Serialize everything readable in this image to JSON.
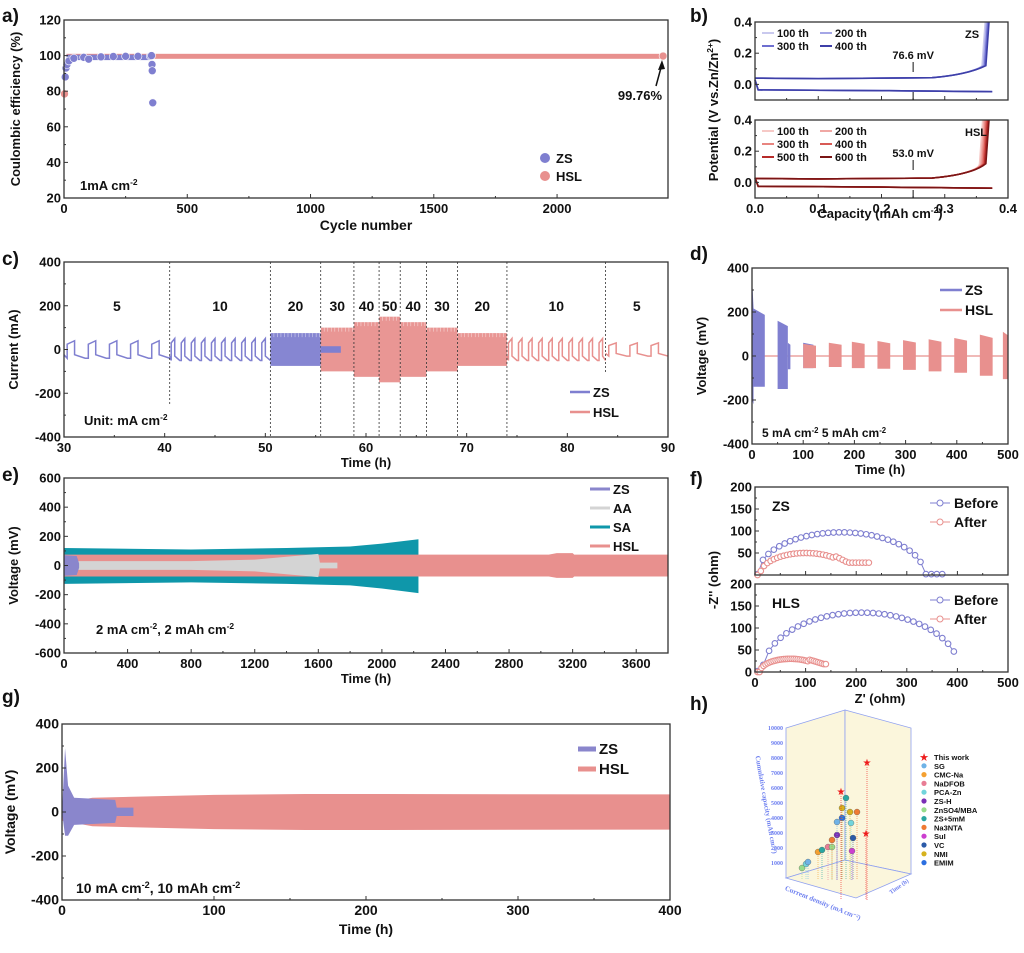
{
  "chart_data": [
    {
      "id": "a",
      "panel_label": "a)",
      "type": "scatter",
      "xlabel": "Cycle number",
      "ylabel": "Coulombic efficiency (%)",
      "xlim": [
        0,
        2450
      ],
      "ylim": [
        20,
        120
      ],
      "xticks": [
        0,
        500,
        1000,
        1500,
        2000
      ],
      "yticks": [
        20,
        40,
        60,
        80,
        100,
        120
      ],
      "annotation": "1mA cm⁻²",
      "callout": "99.76%",
      "legend": "bottom-right",
      "series": [
        {
          "name": "ZS",
          "color": "#7f7fd0",
          "points": [
            [
              5,
              88
            ],
            [
              8,
              93
            ],
            [
              12,
              95
            ],
            [
              20,
              97
            ],
            [
              40,
              98.5
            ],
            [
              80,
              99
            ],
            [
              100,
              98
            ],
            [
              150,
              99.3
            ],
            [
              200,
              99.5
            ],
            [
              250,
              99.6
            ],
            [
              300,
              99.6
            ],
            [
              350,
              99.7
            ],
            [
              355,
              100
            ],
            [
              357,
              95
            ],
            [
              358,
              91.5
            ],
            [
              360,
              73.5
            ]
          ],
          "band_x": [
            10,
            350
          ],
          "band_y": [
            97.5,
            100.5
          ]
        },
        {
          "name": "HSL",
          "color": "#e8908e",
          "points": [
            [
              2,
              78.5
            ],
            [
              2430,
              99.76
            ]
          ],
          "band_x": [
            10,
            2440
          ],
          "band_y": [
            98.2,
            101
          ]
        }
      ]
    },
    {
      "id": "b",
      "panel_label": "b)",
      "type": "line",
      "xlabel": "Capacity (mAh cm⁻²)",
      "ylabel": "Potential (V vs.Zn/Zn²⁺)",
      "xlim": [
        0,
        0.4
      ],
      "xticks": [
        0.0,
        0.1,
        0.2,
        0.3,
        0.4
      ],
      "subplots": [
        {
          "name": "ZS",
          "ylim": [
            -0.1,
            0.4
          ],
          "yticks": [
            0.0,
            0.2,
            0.4
          ],
          "overpotential": "76.6 mV",
          "legend": [
            "100 th",
            "200 th",
            "300 th",
            "400 th"
          ],
          "colors": [
            "#c9c9ee",
            "#a4a6e6",
            "#6e6fd0",
            "#3d3fa8"
          ]
        },
        {
          "name": "HSL",
          "ylim": [
            -0.1,
            0.4
          ],
          "yticks": [
            0.0,
            0.2,
            0.4
          ],
          "overpotential": "53.0 mV",
          "legend": [
            "100 th",
            "200 th",
            "300 th",
            "400 th",
            "500 th",
            "600 th"
          ],
          "colors": [
            "#f6c9c6",
            "#f0a8a4",
            "#e88580",
            "#d85a55",
            "#b72b2a",
            "#7a1515"
          ]
        }
      ]
    },
    {
      "id": "c",
      "panel_label": "c)",
      "type": "line",
      "xlabel": "Time (h)",
      "ylabel": "Current (mA)",
      "xlim": [
        30,
        90
      ],
      "ylim": [
        -400,
        400
      ],
      "xticks": [
        30,
        40,
        50,
        60,
        70,
        80,
        90
      ],
      "yticks": [
        -400,
        -200,
        0,
        200,
        400
      ],
      "annotation": "Unit: mA cm⁻²",
      "legend": "bottom-right",
      "segments": [
        {
          "label": "5",
          "from": 30,
          "to": 40.5,
          "amp": 40
        },
        {
          "label": "10",
          "from": 40.5,
          "to": 50.5,
          "amp": 50
        },
        {
          "label": "20",
          "from": 50.5,
          "to": 55.5,
          "amp": 75
        },
        {
          "label": "30",
          "from": 55.5,
          "to": 58.8,
          "amp": 100
        },
        {
          "label": "40",
          "from": 58.8,
          "to": 61.3,
          "amp": 125
        },
        {
          "label": "50",
          "from": 61.3,
          "to": 63.4,
          "amp": 150
        },
        {
          "label": "40",
          "from": 63.4,
          "to": 66.0,
          "amp": 125
        },
        {
          "label": "30",
          "from": 66.0,
          "to": 69.1,
          "amp": 100
        },
        {
          "label": "20",
          "from": 69.1,
          "to": 74.0,
          "amp": 75
        },
        {
          "label": "10",
          "from": 74.0,
          "to": 83.8,
          "amp": 50
        },
        {
          "label": "5",
          "from": 83.8,
          "to": 90,
          "amp": 30
        }
      ],
      "series": [
        {
          "name": "ZS",
          "color": "#7f7fd0",
          "end_time": 57.5
        },
        {
          "name": "HSL",
          "color": "#e8908e",
          "end_time": 90
        }
      ]
    },
    {
      "id": "d",
      "panel_label": "d)",
      "type": "area",
      "xlabel": "Time (h)",
      "ylabel": "Voltage (mV)",
      "xlim": [
        0,
        500
      ],
      "ylim": [
        -400,
        400
      ],
      "xticks": [
        0,
        100,
        200,
        300,
        400,
        500
      ],
      "yticks": [
        -400,
        -200,
        0,
        200,
        400
      ],
      "annotation": "5 mA cm⁻² 5 mAh cm⁻²",
      "legend": "top-right",
      "series": [
        {
          "name": "ZS",
          "color": "#7f7fd0",
          "blocks": [
            [
              0,
              25,
              220,
              140
            ],
            [
              50,
              70,
              160,
              150
            ],
            [
              70,
              75,
              60,
              60
            ],
            [
              100,
              120,
              60,
              55
            ]
          ]
        },
        {
          "name": "HSL",
          "color": "#e8908e",
          "blocks": [
            [
              100,
              125,
              55,
              55
            ],
            [
              150,
              175,
              60,
              50
            ],
            [
              195,
              220,
              65,
              55
            ],
            [
              245,
              270,
              68,
              58
            ],
            [
              295,
              320,
              72,
              63
            ],
            [
              345,
              370,
              76,
              70
            ],
            [
              395,
              420,
              82,
              76
            ],
            [
              445,
              470,
              97,
              90
            ],
            [
              490,
              500,
              110,
              105
            ]
          ]
        }
      ]
    },
    {
      "id": "e",
      "panel_label": "e)",
      "type": "area",
      "xlabel": "Time (h)",
      "ylabel": "Voltage (mV)",
      "xlim": [
        0,
        3800
      ],
      "ylim": [
        -600,
        600
      ],
      "xticks": [
        0,
        400,
        800,
        1200,
        1600,
        2000,
        2400,
        2800,
        3200,
        3600
      ],
      "yticks": [
        -600,
        -400,
        -200,
        0,
        200,
        400,
        600
      ],
      "annotation": "2 mA cm⁻², 2 mAh cm⁻²",
      "legend": "top-right",
      "series": [
        {
          "name": "ZS",
          "color": "#8a86cc",
          "envelope": [
            [
              0,
              70
            ],
            [
              80,
              65
            ],
            [
              95,
              15
            ]
          ]
        },
        {
          "name": "AA",
          "color": "#d4d4d4",
          "envelope": [
            [
              0,
              30
            ],
            [
              800,
              30
            ],
            [
              1200,
              40
            ],
            [
              1600,
              80
            ],
            [
              1610,
              20
            ],
            [
              1720,
              20
            ]
          ]
        },
        {
          "name": "SA",
          "color": "#0f97aa",
          "envelope": [
            [
              0,
              120
            ],
            [
              800,
              110
            ],
            [
              1400,
              120
            ],
            [
              1800,
              130
            ],
            [
              2000,
              150
            ],
            [
              2230,
              180
            ]
          ]
        },
        {
          "name": "HSL",
          "color": "#e8908e",
          "envelope": [
            [
              0,
              75
            ],
            [
              3050,
              75
            ],
            [
              3100,
              85
            ],
            [
              3200,
              85
            ],
            [
              3210,
              75
            ],
            [
              3800,
              75
            ]
          ]
        }
      ]
    },
    {
      "id": "f",
      "panel_label": "f)",
      "type": "scatter",
      "xlabel": "Z' (ohm)",
      "ylabel": "-Z'' (ohm)",
      "xlim": [
        0,
        500
      ],
      "xticks": [
        0,
        100,
        200,
        300,
        400,
        500
      ],
      "subplots": [
        {
          "name": "ZS",
          "ylim": [
            0,
            200
          ],
          "yticks": [
            50,
            100,
            150,
            200
          ],
          "series": [
            {
              "name": "Before",
              "color": "#7f7fd0",
              "center": 170,
              "radius": 165,
              "peak": 97,
              "end_x": 370
            },
            {
              "name": "After",
              "color": "#e8908e",
              "center": 100,
              "radius": 90,
              "peak": 50,
              "end_x": 225,
              "tail": 28
            }
          ]
        },
        {
          "name": "HLS",
          "ylim": [
            0,
            200
          ],
          "yticks": [
            0,
            50,
            100,
            150,
            200
          ],
          "series": [
            {
              "name": "Before",
              "color": "#7f7fd0",
              "center": 210,
              "radius": 195,
              "peak": 135,
              "end_x": 393
            },
            {
              "name": "After",
              "color": "#e8908e",
              "center": 70,
              "radius": 60,
              "peak": 30,
              "end_x": 140,
              "tail": 18
            }
          ]
        }
      ]
    },
    {
      "id": "g",
      "panel_label": "g)",
      "type": "area",
      "xlabel": "Time (h)",
      "ylabel": "Voltage (mV)",
      "xlim": [
        0,
        400
      ],
      "ylim": [
        -400,
        400
      ],
      "xticks": [
        0,
        100,
        200,
        300,
        400
      ],
      "yticks": [
        -400,
        -200,
        0,
        200,
        400
      ],
      "annotation": "10 mA cm⁻², 10 mAh cm⁻²",
      "legend": "top-right",
      "series": [
        {
          "name": "ZS",
          "color": "#8a86cc",
          "envelope": [
            [
              0,
              0
            ],
            [
              2,
              290
            ],
            [
              4,
              120
            ],
            [
              8,
              65
            ],
            [
              35,
              55
            ],
            [
              36,
              20
            ],
            [
              47,
              20
            ]
          ]
        },
        {
          "name": "HSL",
          "color": "#e8908e",
          "envelope": [
            [
              0,
              40
            ],
            [
              20,
              65
            ],
            [
              100,
              78
            ],
            [
              160,
              82
            ],
            [
              400,
              80
            ]
          ]
        }
      ]
    },
    {
      "id": "h",
      "panel_label": "h)",
      "type": "scatter",
      "title": "",
      "xlabel": "Current density (mA cm⁻²)",
      "ylabel": "Cumulative capacity (mAh cm⁻²)",
      "zlabel": "Time (h)",
      "ylim": [
        0,
        10000
      ],
      "yticks": [
        1000,
        2000,
        3000,
        4000,
        5000,
        6000,
        7000,
        8000,
        9000,
        10000
      ],
      "xticks": [
        0,
        5,
        10,
        15,
        20
      ],
      "zticks": [
        0,
        500,
        1000,
        1500,
        2000
      ],
      "legend": "right",
      "legend_items": [
        {
          "name": "This work",
          "color": "#ee1c1c",
          "marker": "star"
        },
        {
          "name": "SG",
          "color": "#6fb2e6"
        },
        {
          "name": "CMC-Na",
          "color": "#f4a031"
        },
        {
          "name": "NaDFOB",
          "color": "#e87d95"
        },
        {
          "name": "PCA-Zn",
          "color": "#72d4dc"
        },
        {
          "name": "ZS-H",
          "color": "#7a2fb5"
        },
        {
          "name": "ZnSO4/MBA",
          "color": "#98dc8b"
        },
        {
          "name": "ZS+5mM",
          "color": "#2aa6a0"
        },
        {
          "name": "Na3NTA",
          "color": "#ef7a33"
        },
        {
          "name": "SuI",
          "color": "#cc3fcf"
        },
        {
          "name": "VC",
          "color": "#2b5aa8"
        },
        {
          "name": "NMI",
          "color": "#d6b21e"
        },
        {
          "name": "EMIM",
          "color": "#2c6fe0"
        }
      ]
    }
  ]
}
